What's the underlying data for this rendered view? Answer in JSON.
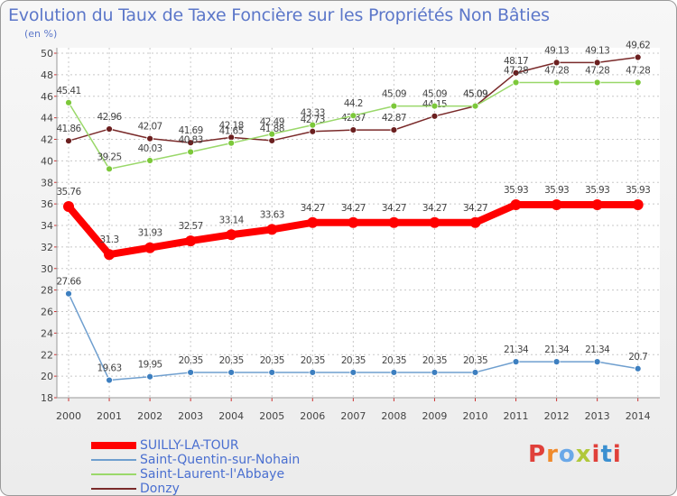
{
  "header": {
    "title": "Evolution du Taux de Taxe Foncière sur les Propriétés Non Bâties",
    "unit": "(en %)"
  },
  "brand": {
    "text": "Proxiti",
    "colors": [
      "#e0403a",
      "#f08a2b",
      "#6aa8e8",
      "#b0c83a",
      "#e0403a",
      "#3a8fd0",
      "#e0403a"
    ]
  },
  "chart_data": {
    "type": "line",
    "title": "Evolution du Taux de Taxe Foncière sur les Propriétés Non Bâties",
    "ylabel": "(en %)",
    "xlabel": "",
    "ylim": [
      18,
      50
    ],
    "yticks": [
      18,
      20,
      22,
      24,
      26,
      28,
      30,
      32,
      34,
      36,
      38,
      40,
      42,
      44,
      46,
      48,
      50
    ],
    "x": [
      "2000",
      "2001",
      "2002",
      "2003",
      "2004",
      "2005",
      "2006",
      "2007",
      "2008",
      "2009",
      "2010",
      "2011",
      "2012",
      "2013",
      "2014"
    ],
    "grid": true,
    "legend_position": "bottom-left",
    "series": [
      {
        "name": "Donzy",
        "color": "#7a2a2a",
        "marker": "#6b1f1f",
        "values": [
          41.86,
          42.96,
          42.07,
          41.69,
          42.18,
          41.88,
          42.73,
          42.87,
          42.87,
          44.15,
          45.09,
          48.17,
          49.13,
          49.13,
          49.62
        ],
        "labels": [
          "41.86",
          "42.96",
          "42.07",
          "41.69",
          "42.18",
          "41.88",
          "42.73",
          "42.87",
          "42.87",
          "44.15",
          "45.09",
          "48.17",
          "49.13",
          "49.13",
          "49.62"
        ]
      },
      {
        "name": "Saint-Laurent-l'Abbaye",
        "color": "#9ad86a",
        "marker": "#7cc83a",
        "values": [
          45.41,
          39.25,
          40.03,
          40.83,
          41.65,
          42.49,
          43.33,
          44.2,
          45.09,
          45.09,
          45.09,
          47.28,
          47.28,
          47.28,
          47.28
        ],
        "labels": [
          "45.41",
          "39.25",
          "40.03",
          "40.83",
          "41.65",
          "42.49",
          "43.33",
          "44.2",
          "45.09",
          "45.09",
          "45.09",
          "47.28",
          "47.28",
          "47.28",
          "47.28"
        ]
      },
      {
        "name": "Saint-Quentin-sur-Nohain",
        "color": "#6f9fcf",
        "marker": "#3d7fc0",
        "values": [
          27.66,
          19.63,
          19.95,
          20.35,
          20.35,
          20.35,
          20.35,
          20.35,
          20.35,
          20.35,
          20.35,
          21.34,
          21.34,
          21.34,
          20.7
        ],
        "labels": [
          "27.66",
          "19.63",
          "19.95",
          "20.35",
          "20.35",
          "20.35",
          "20.35",
          "20.35",
          "20.35",
          "20.35",
          "20.35",
          "21.34",
          "21.34",
          "21.34",
          "20.7"
        ]
      },
      {
        "name": "SUILLY-LA-TOUR",
        "color": "#ff0000",
        "marker": "#ff0000",
        "thick": true,
        "values": [
          35.76,
          31.3,
          31.93,
          32.57,
          33.14,
          33.63,
          34.27,
          34.27,
          34.27,
          34.27,
          34.27,
          35.93,
          35.93,
          35.93,
          35.93
        ],
        "labels": [
          "35.76",
          "31.3",
          "31.93",
          "32.57",
          "33.14",
          "33.63",
          "34.27",
          "34.27",
          "34.27",
          "34.27",
          "34.27",
          "35.93",
          "35.93",
          "35.93",
          "35.93"
        ]
      }
    ],
    "legend": [
      "SUILLY-LA-TOUR",
      "Saint-Quentin-sur-Nohain",
      "Saint-Laurent-l'Abbaye",
      "Donzy"
    ]
  }
}
